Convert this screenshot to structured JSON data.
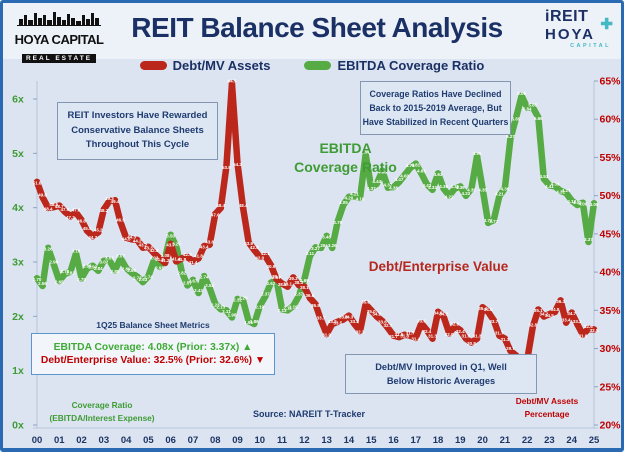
{
  "header": {
    "title": "REIT Balance Sheet Analysis",
    "logo_left": {
      "name": "HOYA CAPITAL",
      "subtitle": "REAL ESTATE"
    },
    "logo_right": {
      "line1": "iREIT",
      "line2": "HOYA",
      "line3": "CAPITAL",
      "plus_icon": "✚"
    }
  },
  "legend": [
    {
      "label": "Debt/MV Assets",
      "color": "#bc271c"
    },
    {
      "label": "EBITDA Coverage Ratio",
      "color": "#56ab44"
    }
  ],
  "annotations": {
    "cycle_note": "REIT Investors Have Rewarded\nConservative Balance Sheets\nThroughout This Cycle",
    "coverage_note": "Coverage Ratios Have Declined\nBack to 2015-2019 Average, But\nHave Stabilized in Recent Quarters",
    "debt_mv_note": "Debt/MV Improved in Q1, Well\nBelow Historic Averages",
    "ebitda_series_label": "EBITDA\nCoverage Ratio",
    "debt_ev_series_label": "Debt/Enterprise Value",
    "left_axis_caption": "Coverage Ratio\n(EBITDA/Interest Expense)",
    "right_axis_caption": "Debt/MV Assets\nPercentage",
    "source": "Source: NAREIT T-Tracker"
  },
  "metrics_panel": {
    "title": "1Q25 Balance Sheet Metrics",
    "ebitda_line": "EBITDA Coverage: 4.08x (Prior: 3.37x) ▲",
    "debt_line": "Debt/Enterprise Value: 32.5% (Prior: 32.6%) ▼"
  },
  "colors": {
    "red": "#bc271c",
    "green": "#56ab44",
    "navy": "#1b3064",
    "teal": "#45b8c6",
    "background": "#dbe4f0",
    "border": "#2a6ab2"
  },
  "chart_data": {
    "type": "line",
    "title": "REIT Balance Sheet Analysis",
    "frequency": "quarterly",
    "x_range": [
      "2000Q1",
      "2025Q1"
    ],
    "x_labels": [
      "00",
      "01",
      "02",
      "03",
      "04",
      "05",
      "06",
      "07",
      "08",
      "09",
      "10",
      "11",
      "12",
      "13",
      "14",
      "15",
      "16",
      "17",
      "18",
      "19",
      "20",
      "21",
      "22",
      "23",
      "24",
      "25"
    ],
    "left_axis": {
      "min": 0,
      "max": 6,
      "color": "#3f9b35",
      "ticks": [
        {
          "v": 6,
          "label": "6x"
        },
        {
          "v": 5,
          "label": "5x"
        },
        {
          "v": 4,
          "label": "4x"
        },
        {
          "v": 3,
          "label": "3x"
        },
        {
          "v": 2,
          "label": "2x"
        },
        {
          "v": 1,
          "label": "1x"
        },
        {
          "v": 0,
          "label": "0x"
        }
      ]
    },
    "right_axis": {
      "min": 20,
      "max": 65,
      "color": "#c00000",
      "ticks": [
        {
          "v": 65,
          "label": "65%"
        },
        {
          "v": 60,
          "label": "60%"
        },
        {
          "v": 55,
          "label": "55%"
        },
        {
          "v": 50,
          "label": "50%"
        },
        {
          "v": 45,
          "label": "45%"
        },
        {
          "v": 40,
          "label": "40%"
        },
        {
          "v": 35,
          "label": "35%"
        },
        {
          "v": 30,
          "label": "30%"
        },
        {
          "v": 25,
          "label": "25%"
        },
        {
          "v": 20,
          "label": "20%"
        }
      ]
    },
    "series": [
      {
        "name": "EBITDA Coverage Ratio",
        "axis": "left",
        "unit": "x",
        "color": "#56ab44",
        "decimals": 2,
        "values": [
          2.7,
          2.56,
          3.26,
          2.96,
          2.65,
          2.78,
          2.82,
          3.16,
          2.7,
          2.88,
          2.93,
          2.84,
          3.02,
          3.03,
          2.85,
          3.07,
          2.89,
          2.8,
          2.73,
          2.63,
          2.74,
          3.03,
          2.91,
          3.08,
          3.5,
          3.29,
          2.82,
          2.57,
          2.67,
          2.43,
          2.74,
          2.52,
          2.23,
          2.13,
          2.11,
          1.98,
          2.32,
          2.29,
          1.91,
          1.86,
          2.19,
          2.37,
          2.62,
          2.67,
          2.13,
          2.11,
          2.19,
          2.37,
          2.68,
          3.11,
          3.27,
          3.26,
          3.48,
          3.26,
          3.75,
          4.05,
          4.2,
          4.21,
          4.18,
          4.98,
          4.37,
          4.44,
          4.68,
          4.37,
          4.38,
          4.47,
          4.6,
          4.73,
          4.81,
          4.63,
          4.43,
          4.33,
          4.63,
          4.35,
          4.22,
          4.35,
          4.39,
          4.22,
          4.35,
          4.95,
          4.35,
          3.72,
          3.77,
          4.21,
          4.36,
          5.27,
          5.65,
          6.06,
          5.84,
          5.85,
          5.66,
          4.53,
          4.41,
          4.39,
          4.31,
          4.27,
          4.13,
          4.05,
          4.09,
          3.37,
          4.08
        ]
      },
      {
        "name": "Debt/MV Assets",
        "axis": "right",
        "unit": "%",
        "color": "#bc271c",
        "decimals": 1,
        "values": [
          51.8,
          49.8,
          48.4,
          48.5,
          48.7,
          47.9,
          47.3,
          47.8,
          46.8,
          45.4,
          44.7,
          45.2,
          48.2,
          49.3,
          49.4,
          46.5,
          44.5,
          44.3,
          44.2,
          43.2,
          43.3,
          42.5,
          41.8,
          41.2,
          43.7,
          41.4,
          41.8,
          42.0,
          41.4,
          41.8,
          43.4,
          43.6,
          47.6,
          48.4,
          53.8,
          64.7,
          54.2,
          48.4,
          43.9,
          42.9,
          42.0,
          42.1,
          40.9,
          39.1,
          38.5,
          38.1,
          39.3,
          38.3,
          38.1,
          36.6,
          35.8,
          33.7,
          31.9,
          33.2,
          33.5,
          33.8,
          34.3,
          33.2,
          32.3,
          35.8,
          35.0,
          34.2,
          33.6,
          32.7,
          31.7,
          31.5,
          31.8,
          31.7,
          31.4,
          33.3,
          32.4,
          31.3,
          34.8,
          34.2,
          32.0,
          32.9,
          32.4,
          31.3,
          30.8,
          31.3,
          35.4,
          34.8,
          33.7,
          31.7,
          31.3,
          29.7,
          29.1,
          26.8,
          28.5,
          32.8,
          35.1,
          34.2,
          34.5,
          34.8,
          36.3,
          33.4,
          34.7,
          33.2,
          31.8,
          32.6,
          32.5
        ]
      }
    ]
  }
}
